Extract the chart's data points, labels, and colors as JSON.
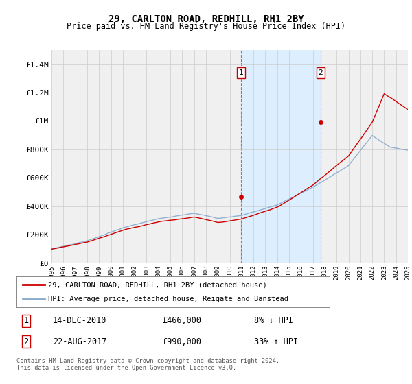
{
  "title": "29, CARLTON ROAD, REDHILL, RH1 2BY",
  "subtitle": "Price paid vs. HM Land Registry's House Price Index (HPI)",
  "ylim": [
    0,
    1500000
  ],
  "yticks": [
    0,
    200000,
    400000,
    600000,
    800000,
    1000000,
    1200000,
    1400000
  ],
  "ytick_labels": [
    "£0",
    "£200K",
    "£400K",
    "£600K",
    "£800K",
    "£1M",
    "£1.2M",
    "£1.4M"
  ],
  "x_start_year": 1995,
  "x_end_year": 2025,
  "sale1_year": 2010.958,
  "sale1_price": 466000,
  "sale1_date": "14-DEC-2010",
  "sale1_hpi_diff": "8% ↓ HPI",
  "sale2_year": 2017.64,
  "sale2_price": 990000,
  "sale2_date": "22-AUG-2017",
  "sale2_hpi_diff": "33% ↑ HPI",
  "legend_house": "29, CARLTON ROAD, REDHILL, RH1 2BY (detached house)",
  "legend_hpi": "HPI: Average price, detached house, Reigate and Banstead",
  "footer": "Contains HM Land Registry data © Crown copyright and database right 2024.\nThis data is licensed under the Open Government Licence v3.0.",
  "line_color_house": "#cc0000",
  "line_color_hpi": "#88aacc",
  "shaded_color": "#ddeeff",
  "grid_color": "#cccccc",
  "bg_color": "#f0f0f0"
}
